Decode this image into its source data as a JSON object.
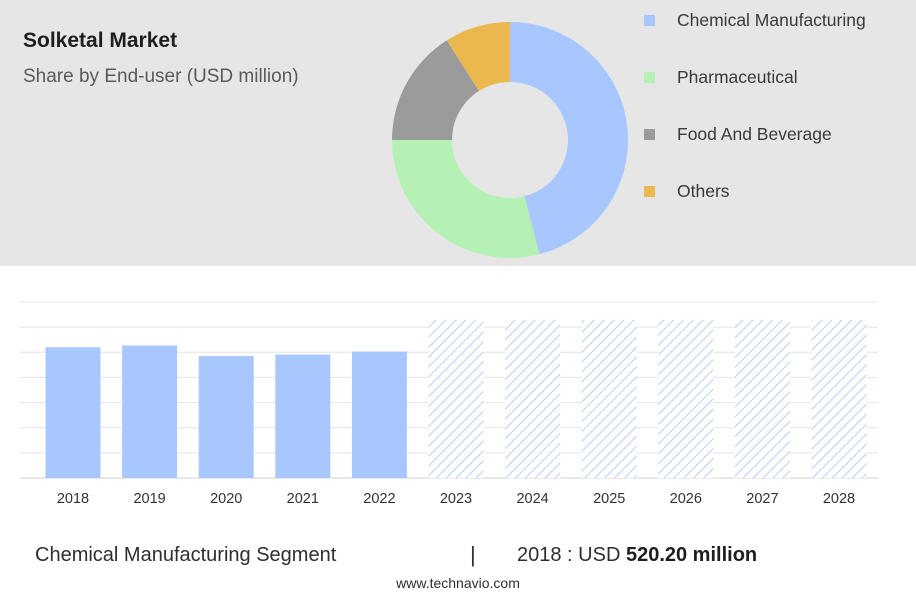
{
  "chart_data": [
    {
      "type": "pie",
      "donut": true,
      "title": "Solketal Market",
      "subtitle": "Share by End-user (USD million)",
      "legend_position": "right",
      "slices": [
        {
          "name": "Chemical Manufacturing",
          "value": 46,
          "color": "#a9c7ff"
        },
        {
          "name": "Pharmaceutical",
          "value": 29,
          "color": "#b5f0b5"
        },
        {
          "name": "Food And Beverage",
          "value": 16,
          "color": "#9b9b9b"
        },
        {
          "name": "Others",
          "value": 9,
          "color": "#ebb84f"
        }
      ]
    },
    {
      "type": "bar",
      "categories": [
        "2018",
        "2019",
        "2020",
        "2021",
        "2022",
        "2023",
        "2024",
        "2025",
        "2026",
        "2027",
        "2028"
      ],
      "values": [
        520.2,
        527,
        485,
        491,
        503,
        null,
        null,
        null,
        null,
        null,
        null
      ],
      "forecast_categories": [
        "2023",
        "2024",
        "2025",
        "2026",
        "2027",
        "2028"
      ],
      "ylim": [
        0,
        700
      ],
      "grid": true,
      "bar_color": "#a9c7ff",
      "forecast_pattern": "hatched"
    }
  ],
  "footer": {
    "segment": "Chemical Manufacturing Segment",
    "separator": "|",
    "year_label": "2018 : USD",
    "value": "520.20 million"
  },
  "source": "www.technavio.com"
}
